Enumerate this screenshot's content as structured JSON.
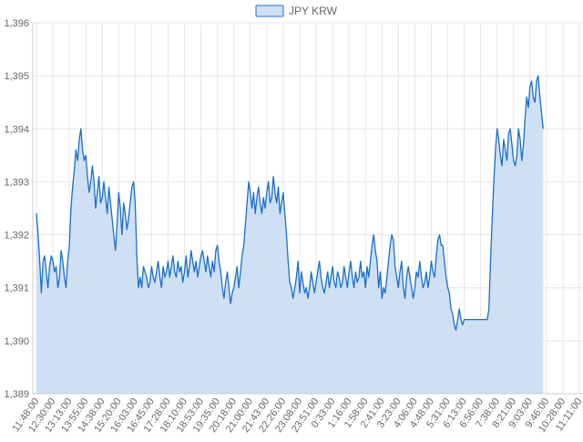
{
  "chart_data": {
    "type": "area",
    "title": "",
    "xlabel": "",
    "ylabel": "",
    "ylim": [
      1389,
      1396
    ],
    "grid": true,
    "legend_position": "top-center",
    "colors": {
      "line": "#1b6fc9",
      "fill": "#cfe0f4",
      "grid": "#e6e6e6",
      "axis": "#cccccc",
      "text": "#666666"
    },
    "y_ticks": [
      "1,389",
      "1,390",
      "1,391",
      "1,392",
      "1,393",
      "1,394",
      "1,395",
      "1,396"
    ],
    "y_tick_values": [
      1389,
      1390,
      1391,
      1392,
      1393,
      1394,
      1395,
      1396
    ],
    "x_ticks": [
      "11:48:00",
      "12:30:00",
      "13:13:00",
      "13:55:00",
      "14:38:00",
      "15:20:00",
      "16:03:00",
      "16:45:00",
      "17:28:00",
      "18:10:00",
      "18:53:00",
      "19:35:00",
      "20:18:00",
      "21:00:00",
      "21:43:00",
      "22:26:00",
      "23:08:00",
      "23:51:00",
      "0:33:00",
      "1:16:00",
      "1:58:00",
      "2:41:00",
      "3:23:00",
      "4:06:00",
      "4:48:00",
      "5:31:00",
      "6:13:00",
      "6:56:00",
      "7:38:00",
      "8:21:00",
      "9:03:00",
      "9:46:00",
      "10:28:00",
      "11:11:00"
    ],
    "series": [
      {
        "name": "JPY KRW",
        "x_ticks_index": [
          0,
          0.1,
          0.2,
          0.3,
          0.4,
          0.5,
          0.6,
          0.7,
          0.8,
          0.9,
          1.0,
          1.1,
          1.2,
          1.3,
          1.4,
          1.5,
          1.6,
          1.7,
          1.8,
          1.9,
          2.0,
          2.1,
          2.2,
          2.3,
          2.4,
          2.5,
          2.6,
          2.7,
          2.8,
          2.9,
          3.0,
          3.1,
          3.2,
          3.3,
          3.4,
          3.5,
          3.6,
          3.7,
          3.8,
          3.9,
          4.0,
          4.1,
          4.2,
          4.3,
          4.4,
          4.5,
          4.6,
          4.7,
          4.8,
          4.9,
          5.0,
          5.1,
          5.2,
          5.3,
          5.4,
          5.5,
          5.6,
          5.7,
          5.8,
          5.9,
          6.0,
          6.1,
          6.2,
          6.3,
          6.4,
          6.5,
          6.6,
          6.7,
          6.8,
          6.9,
          7.0,
          7.1,
          7.2,
          7.3,
          7.4,
          7.5,
          7.6,
          7.7,
          7.8,
          7.9,
          8.0,
          8.1,
          8.2,
          8.3,
          8.4,
          8.5,
          8.6,
          8.7,
          8.8,
          8.9,
          9.0,
          9.1,
          9.2,
          9.3,
          9.4,
          9.5,
          9.6,
          9.7,
          9.8,
          9.9,
          10.0,
          10.1,
          10.2,
          10.3,
          10.4,
          10.5,
          10.6,
          10.7,
          10.8,
          10.9,
          11.0,
          11.1,
          11.2,
          11.3,
          11.4,
          11.5,
          11.6,
          11.7,
          11.8,
          11.9,
          12.0,
          12.1,
          12.2,
          12.3,
          12.4,
          12.5,
          12.6,
          12.7,
          12.8,
          12.9,
          13.0,
          13.1,
          13.2,
          13.3,
          13.4,
          13.5,
          13.6,
          13.7,
          13.8,
          13.9,
          14.0,
          14.1,
          14.2,
          14.3,
          14.4,
          14.5,
          14.6,
          14.7,
          14.8,
          14.9,
          15.0,
          15.1,
          15.2,
          15.3,
          15.4,
          15.5,
          15.6,
          15.7,
          15.8,
          15.9,
          16.0,
          16.1,
          16.2,
          16.3,
          16.4,
          16.5,
          16.6,
          16.7,
          16.8,
          16.9,
          17.0,
          17.1,
          17.2,
          17.3,
          17.4,
          17.5,
          17.6,
          17.7,
          17.8,
          17.9,
          18.0,
          18.1,
          18.2,
          18.3,
          18.4,
          18.5,
          18.6,
          18.7,
          18.8,
          18.9,
          19.0,
          19.1,
          19.2,
          19.3,
          19.4,
          19.5,
          19.6,
          19.7,
          19.8,
          19.9,
          20.0,
          20.1,
          20.2,
          20.3,
          20.4,
          20.5,
          20.6,
          20.7,
          20.8,
          20.9,
          21.0,
          21.1,
          21.2,
          21.3,
          21.4,
          21.5,
          21.6,
          21.7,
          21.8,
          21.9,
          22.0,
          22.1,
          22.2,
          22.3,
          22.4,
          22.5,
          22.6,
          22.7,
          22.8,
          22.9,
          23.0,
          23.1,
          23.2,
          23.3,
          23.4,
          23.5,
          23.6,
          23.7,
          23.8,
          23.9,
          24.0,
          24.1,
          24.2,
          24.3,
          24.4,
          24.5,
          24.6,
          24.7,
          24.8,
          24.9,
          25.0,
          25.1,
          25.2,
          25.3,
          25.4,
          25.5,
          25.6,
          25.7,
          25.8,
          25.9,
          26.0,
          26.1,
          26.2,
          26.3,
          26.4,
          26.5,
          26.6,
          26.7,
          26.8,
          26.9,
          27.0,
          27.1,
          27.2,
          27.3,
          27.4,
          27.5,
          27.6,
          27.7,
          27.8,
          27.9,
          28.0,
          28.1,
          28.2,
          28.3,
          28.4,
          28.5,
          28.6,
          28.7,
          28.8,
          28.9,
          29.0,
          29.1,
          29.2,
          29.3,
          29.4,
          29.5,
          29.6,
          29.7,
          29.8,
          29.9,
          30.0,
          30.1,
          30.2,
          30.3,
          30.4,
          30.5,
          30.6,
          30.7,
          30.8,
          30.9,
          31.0,
          31.1,
          31.2,
          31.3,
          31.4,
          31.5,
          31.6,
          31.7,
          31.8,
          31.9,
          32.0,
          32.1,
          32.2,
          32.3,
          32.4,
          32.5,
          32.6,
          32.7,
          32.8,
          32.9,
          33.0,
          33.1,
          33.2,
          33.3,
          33.4,
          33.5,
          33.6,
          33.7
        ],
        "values": [
          1392.4,
          1392.0,
          1391.5,
          1390.9,
          1391.5,
          1391.6,
          1391.3,
          1391.0,
          1391.4,
          1391.6,
          1391.5,
          1391.3,
          1391.4,
          1391.0,
          1391.2,
          1391.7,
          1391.5,
          1391.2,
          1391.0,
          1391.5,
          1391.8,
          1392.5,
          1392.9,
          1393.2,
          1393.6,
          1393.4,
          1393.8,
          1394.0,
          1393.6,
          1393.4,
          1393.5,
          1393.1,
          1392.8,
          1393.0,
          1393.3,
          1393.0,
          1392.5,
          1392.8,
          1393.1,
          1392.6,
          1392.7,
          1393.0,
          1392.7,
          1392.4,
          1392.9,
          1392.6,
          1392.3,
          1392.0,
          1391.7,
          1392.2,
          1392.8,
          1392.5,
          1392.0,
          1392.6,
          1392.4,
          1392.1,
          1392.3,
          1392.6,
          1392.9,
          1393.0,
          1392.6,
          1391.6,
          1391.0,
          1391.2,
          1391.0,
          1391.4,
          1391.3,
          1391.2,
          1391.0,
          1391.1,
          1391.4,
          1391.2,
          1391.1,
          1391.3,
          1391.5,
          1391.2,
          1391.0,
          1391.4,
          1391.2,
          1391.3,
          1391.5,
          1391.2,
          1391.4,
          1391.6,
          1391.3,
          1391.2,
          1391.5,
          1391.3,
          1391.4,
          1391.1,
          1391.3,
          1391.6,
          1391.2,
          1391.4,
          1391.7,
          1391.5,
          1391.3,
          1391.5,
          1391.2,
          1391.4,
          1391.6,
          1391.7,
          1391.5,
          1391.3,
          1391.6,
          1391.4,
          1391.2,
          1391.5,
          1391.3,
          1391.7,
          1391.8,
          1391.5,
          1391.3,
          1391.0,
          1390.8,
          1391.1,
          1391.3,
          1391.0,
          1390.7,
          1390.9,
          1391.0,
          1391.2,
          1391.4,
          1391.0,
          1391.3,
          1391.6,
          1391.8,
          1392.2,
          1392.6,
          1393.0,
          1392.8,
          1392.5,
          1392.8,
          1392.4,
          1392.7,
          1392.9,
          1392.6,
          1392.4,
          1392.7,
          1392.5,
          1392.8,
          1393.0,
          1392.6,
          1392.7,
          1393.1,
          1392.8,
          1392.6,
          1392.9,
          1392.4,
          1392.6,
          1392.8,
          1392.4,
          1392.0,
          1391.5,
          1391.1,
          1391.0,
          1390.8,
          1391.0,
          1391.2,
          1391.5,
          1390.9,
          1391.3,
          1391.1,
          1390.9,
          1391.0,
          1390.8,
          1391.0,
          1391.3,
          1391.1,
          1390.9,
          1391.1,
          1391.3,
          1391.5,
          1391.2,
          1391.0,
          1390.9,
          1391.1,
          1391.3,
          1391.0,
          1391.2,
          1391.4,
          1391.1,
          1391.0,
          1391.3,
          1391.2,
          1391.0,
          1391.1,
          1391.4,
          1391.2,
          1391.0,
          1391.3,
          1391.5,
          1391.2,
          1391.0,
          1391.3,
          1391.1,
          1391.2,
          1391.5,
          1391.2,
          1391.3,
          1391.0,
          1391.4,
          1391.2,
          1391.5,
          1391.8,
          1392.0,
          1391.7,
          1391.5,
          1391.0,
          1391.3,
          1390.8,
          1391.0,
          1390.9,
          1391.2,
          1391.5,
          1391.8,
          1392.0,
          1391.9,
          1391.4,
          1391.2,
          1391.0,
          1391.3,
          1391.5,
          1391.0,
          1390.8,
          1391.2,
          1391.4,
          1391.2,
          1391.0,
          1390.8,
          1391.0,
          1391.3,
          1391.2,
          1391.5,
          1391.2,
          1391.0,
          1391.1,
          1391.3,
          1391.0,
          1391.2,
          1391.5,
          1391.3,
          1391.2,
          1391.6,
          1391.9,
          1392.0,
          1391.8,
          1391.8,
          1391.5,
          1391.2,
          1391.0,
          1390.9,
          1390.6,
          1390.5,
          1390.3,
          1390.2,
          1390.4,
          1390.6,
          1390.4,
          1390.3,
          1390.4,
          1390.4,
          1390.4,
          1390.4,
          1390.4,
          1390.4,
          1390.4,
          1390.4,
          1390.4,
          1390.4,
          1390.4,
          1390.4,
          1390.4,
          1390.4,
          1390.4,
          1390.6,
          1391.5,
          1392.3,
          1393.0,
          1393.6,
          1394.0,
          1393.8,
          1393.5,
          1393.3,
          1393.8,
          1393.6,
          1393.4,
          1393.9,
          1394.0,
          1393.7,
          1393.4,
          1393.3,
          1393.5,
          1394.0,
          1393.8,
          1393.4,
          1393.7,
          1394.2,
          1394.6,
          1394.4,
          1394.8,
          1394.9,
          1394.6,
          1394.5,
          1394.9,
          1395.0,
          1394.6,
          1394.3,
          1394.0
        ]
      }
    ]
  }
}
